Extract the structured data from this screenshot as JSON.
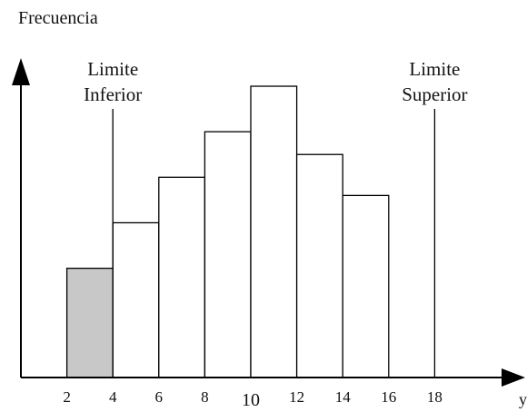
{
  "chart_data": {
    "type": "bar",
    "title": "",
    "ylabel": "Frecuencia",
    "xlabel": "y",
    "x_ticks": [
      "2",
      "4",
      "6",
      "8",
      "10",
      "12",
      "14",
      "16",
      "18"
    ],
    "bins": [
      {
        "from": 2,
        "to": 4,
        "value": 2.4,
        "highlighted": true
      },
      {
        "from": 4,
        "to": 6,
        "value": 3.4,
        "highlighted": false
      },
      {
        "from": 6,
        "to": 8,
        "value": 4.4,
        "highlighted": false
      },
      {
        "from": 8,
        "to": 10,
        "value": 5.4,
        "highlighted": false
      },
      {
        "from": 10,
        "to": 12,
        "value": 6.4,
        "highlighted": false
      },
      {
        "from": 12,
        "to": 14,
        "value": 4.9,
        "highlighted": false
      },
      {
        "from": 14,
        "to": 16,
        "value": 4.0,
        "highlighted": false
      }
    ],
    "xlim": [
      0,
      21
    ],
    "ylim": [
      0,
      7.5
    ],
    "grid": false,
    "colors": {
      "highlight": "#c8c8c8",
      "bar": "#ffffff",
      "stroke": "#000000"
    },
    "limits": [
      {
        "x": 4,
        "label_line1": "Limite",
        "label_line2": "Inferior"
      },
      {
        "x": 18,
        "label_line1": "Limite",
        "label_line2": "Superior"
      }
    ]
  }
}
